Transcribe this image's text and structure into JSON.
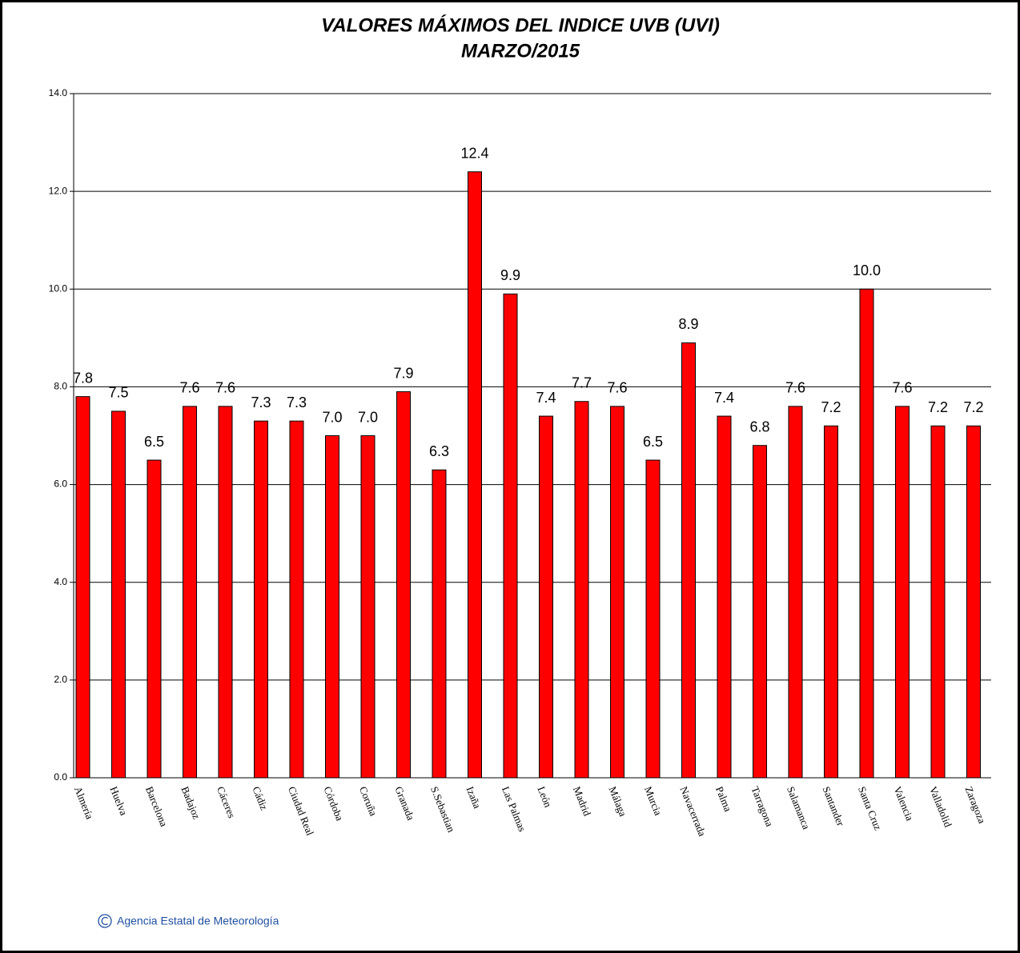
{
  "chart_data": {
    "type": "bar",
    "title": "VALORES MÁXIMOS DEL INDICE UVB (UVI)",
    "subtitle": "MARZO/2015",
    "categories": [
      "Almería",
      "Huelva",
      "Barcelona",
      "Badajoz",
      "Cáceres",
      "Cádiz",
      "Ciudad Real",
      "Córdoba",
      "Coruña",
      "Granada",
      "S.Sebastian",
      "Izaña",
      "Las Palmas",
      "León",
      "Madrid",
      "Málaga",
      "Murcia",
      "Navacerrada",
      "Palma",
      "Tarragona",
      "Salamanca",
      "Santander",
      "Santa Cruz",
      "Valencia",
      "Valladolid",
      "Zaragoza"
    ],
    "values": [
      7.8,
      7.5,
      6.5,
      7.6,
      7.6,
      7.3,
      7.3,
      7.0,
      7.0,
      7.9,
      6.3,
      12.4,
      9.9,
      7.4,
      7.7,
      7.6,
      6.5,
      8.9,
      7.4,
      6.8,
      7.6,
      7.2,
      10.0,
      7.6,
      7.2,
      7.2
    ],
    "value_labels": [
      "7.8",
      "7.5",
      "6.5",
      "7.6",
      "7.6",
      "7.3",
      "7.3",
      "7.0",
      "7.0",
      "7.9",
      "6.3",
      "12.4",
      "9.9",
      "7.4",
      "7.7",
      "7.6",
      "6.5",
      "8.9",
      "7.4",
      "6.8",
      "7.6",
      "7.2",
      "10.0",
      "7.6",
      "7.2",
      "7.2"
    ],
    "color": "#ff0000",
    "ylim": [
      0,
      14
    ],
    "yticks": [
      {
        "value": 0,
        "label": "0.0"
      },
      {
        "value": 2,
        "label": "2.0"
      },
      {
        "value": 4,
        "label": "4.0"
      },
      {
        "value": 6,
        "label": "6.0"
      },
      {
        "value": 8,
        "label": "8.0"
      },
      {
        "value": 10,
        "label": "10.0"
      },
      {
        "value": 12,
        "label": "12.0"
      },
      {
        "value": 14,
        "label": "14.0"
      }
    ],
    "grid": true,
    "source": "Agencia Estatal de Meteorología"
  }
}
